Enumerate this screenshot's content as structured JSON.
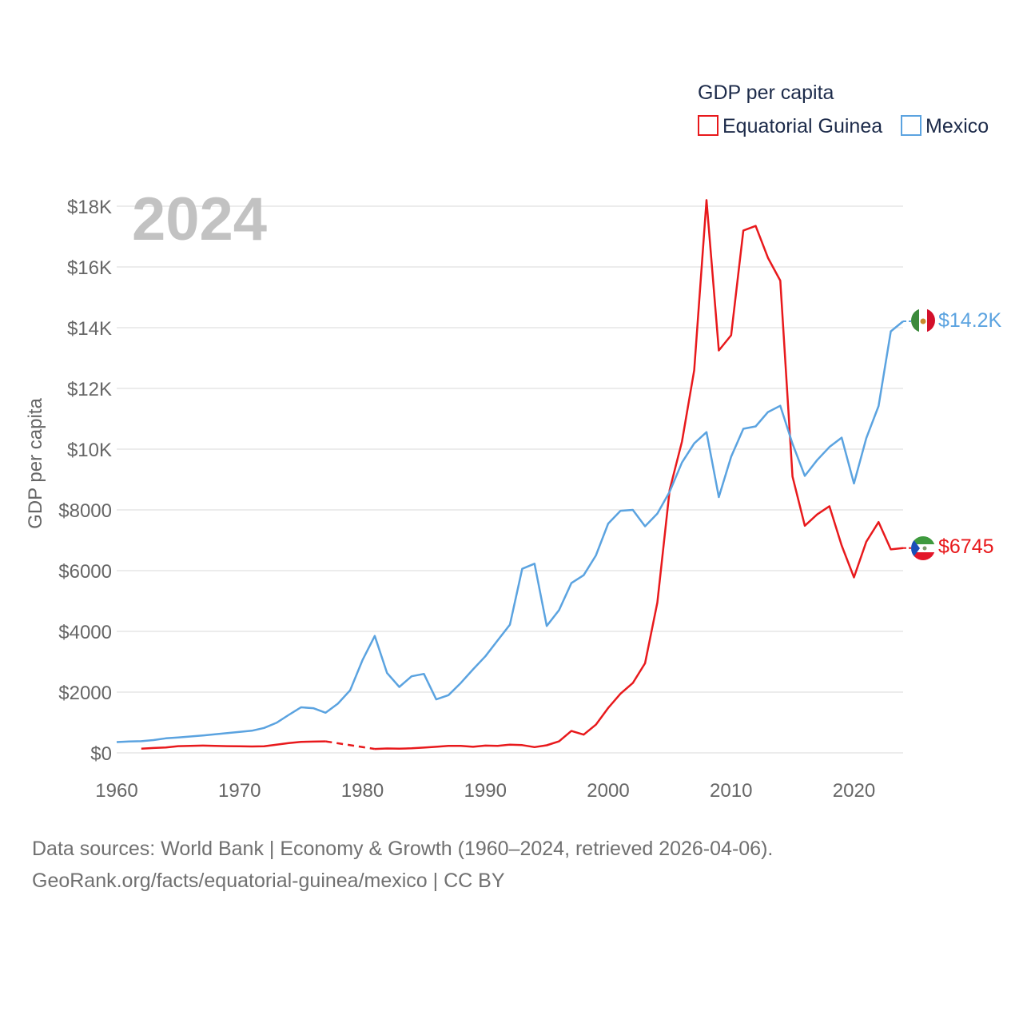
{
  "chart_data": {
    "type": "line",
    "title": "GDP per capita",
    "year_label": "2024",
    "ylabel": "GDP per capita",
    "xlabel": "",
    "xlim": [
      1960,
      2024
    ],
    "ylim": [
      0,
      18000
    ],
    "x_ticks": [
      1960,
      1970,
      1980,
      1990,
      2000,
      2010,
      2020
    ],
    "x_tick_labels": [
      "1960",
      "1970",
      "1980",
      "1990",
      "2000",
      "2010",
      "2020"
    ],
    "y_ticks": [
      0,
      2000,
      4000,
      6000,
      8000,
      10000,
      12000,
      14000,
      16000,
      18000
    ],
    "y_tick_labels": [
      "$0",
      "$2000",
      "$4000",
      "$6000",
      "$8000",
      "$10K",
      "$12K",
      "$14K",
      "$16K",
      "$18K"
    ],
    "legend": {
      "title": "GDP per capita",
      "position": "top-right"
    },
    "series": [
      {
        "name": "Equatorial Guinea",
        "color": "#e8191c",
        "end_label": "$6745",
        "gap": {
          "from": 1977,
          "to": 1981,
          "style": "dashed"
        },
        "x": [
          1962,
          1963,
          1964,
          1965,
          1966,
          1967,
          1968,
          1969,
          1970,
          1971,
          1972,
          1973,
          1974,
          1975,
          1976,
          1977,
          1981,
          1982,
          1983,
          1984,
          1985,
          1986,
          1987,
          1988,
          1989,
          1990,
          1991,
          1992,
          1993,
          1994,
          1995,
          1996,
          1997,
          1998,
          1999,
          2000,
          2001,
          2002,
          2003,
          2004,
          2005,
          2006,
          2007,
          2008,
          2009,
          2010,
          2011,
          2012,
          2013,
          2014,
          2015,
          2016,
          2017,
          2018,
          2019,
          2020,
          2021,
          2022,
          2023,
          2024
        ],
        "values": [
          140,
          160,
          180,
          220,
          230,
          240,
          230,
          220,
          215,
          210,
          215,
          270,
          320,
          360,
          370,
          380,
          130,
          145,
          140,
          150,
          175,
          200,
          230,
          230,
          200,
          240,
          230,
          270,
          255,
          190,
          250,
          380,
          720,
          600,
          930,
          1480,
          1950,
          2300,
          2950,
          4950,
          8660,
          10250,
          12600,
          18200,
          13250,
          13750,
          17200,
          17350,
          16300,
          15550,
          9100,
          7480,
          7850,
          8120,
          6830,
          5780,
          6950,
          7600,
          6700,
          6745
        ]
      },
      {
        "name": "Mexico",
        "color": "#5ba3e0",
        "end_label": "$14.2K",
        "x": [
          1960,
          1961,
          1962,
          1963,
          1964,
          1965,
          1966,
          1967,
          1968,
          1969,
          1970,
          1971,
          1972,
          1973,
          1974,
          1975,
          1976,
          1977,
          1978,
          1979,
          1980,
          1981,
          1982,
          1983,
          1984,
          1985,
          1986,
          1987,
          1988,
          1989,
          1990,
          1991,
          1992,
          1993,
          1994,
          1995,
          1996,
          1997,
          1998,
          1999,
          2000,
          2001,
          2002,
          2003,
          2004,
          2005,
          2006,
          2007,
          2008,
          2009,
          2010,
          2011,
          2012,
          2013,
          2014,
          2015,
          2016,
          2017,
          2018,
          2019,
          2020,
          2021,
          2022,
          2023,
          2024
        ],
        "values": [
          355,
          375,
          385,
          420,
          480,
          505,
          540,
          570,
          610,
          650,
          690,
          730,
          820,
          990,
          1250,
          1500,
          1470,
          1320,
          1620,
          2060,
          3050,
          3850,
          2630,
          2170,
          2520,
          2600,
          1760,
          1900,
          2300,
          2750,
          3180,
          3700,
          4220,
          6060,
          6230,
          4180,
          4700,
          5590,
          5850,
          6500,
          7550,
          7970,
          8000,
          7460,
          7880,
          8600,
          9560,
          10190,
          10560,
          8420,
          9750,
          10670,
          10750,
          11220,
          11430,
          10180,
          9120,
          9640,
          10070,
          10380,
          8870,
          10360,
          11420,
          13880,
          14210
        ]
      }
    ]
  },
  "source": {
    "line1": "Data sources: World Bank | Economy & Growth (1960–2024, retrieved 2026-04-06).",
    "line2": "GeoRank.org/facts/equatorial-guinea/mexico | CC BY"
  }
}
